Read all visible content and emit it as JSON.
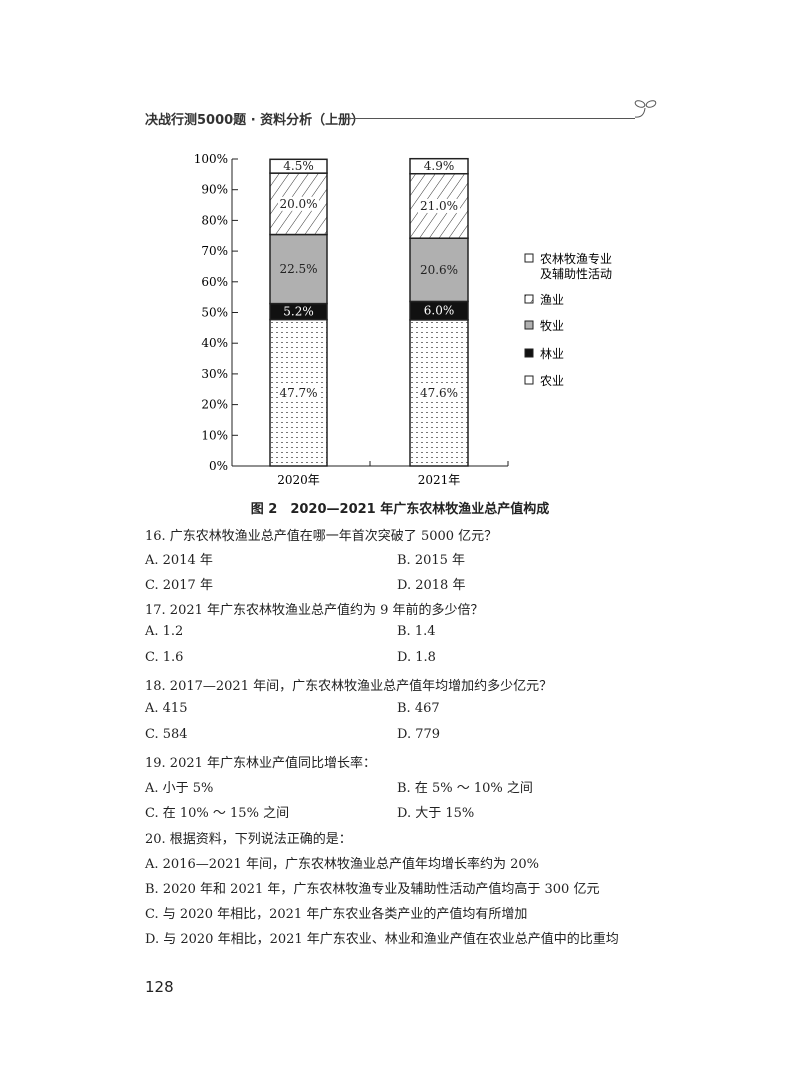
{
  "header": {
    "title": "决战行测5000题 · 资料分析（上册）"
  },
  "chart_data": {
    "type": "bar",
    "stacked": true,
    "title": "图 2　2020—2021 年广东农林牧渔业总产值构成",
    "categories": [
      "2020年",
      "2021年"
    ],
    "yticks": [
      "0%",
      "10%",
      "20%",
      "30%",
      "40%",
      "50%",
      "60%",
      "70%",
      "80%",
      "90%",
      "100%"
    ],
    "ylim": [
      0,
      100
    ],
    "series": [
      {
        "name": "农业",
        "values": [
          47.7,
          47.6
        ],
        "labels": [
          "47.7%",
          "47.6%"
        ],
        "pattern": "dots"
      },
      {
        "name": "林业",
        "values": [
          5.2,
          6.0
        ],
        "labels": [
          "5.2%",
          "6.0%"
        ],
        "color": "#111111"
      },
      {
        "name": "牧业",
        "values": [
          22.5,
          20.6
        ],
        "labels": [
          "22.5%",
          "20.6%"
        ],
        "color": "#b0b0b0"
      },
      {
        "name": "渔业",
        "values": [
          20.0,
          21.0
        ],
        "labels": [
          "20.0%",
          "21.0%"
        ],
        "pattern": "hatch"
      },
      {
        "name": "农林牧渔专业及辅助性活动",
        "values": [
          4.5,
          4.9
        ],
        "labels": [
          "4.5%",
          "4.9%"
        ],
        "color": "#ffffff"
      }
    ],
    "legend": [
      "农林牧渔专业",
      "及辅助性活动",
      "渔业",
      "牧业",
      "林业",
      "农业"
    ],
    "legend_position": "right"
  },
  "questions": [
    {
      "q": "16. 广东农林牧渔业总产值在哪一年首次突破了 5000 亿元？",
      "opts": [
        "A. 2014 年",
        "B. 2015 年",
        "C. 2017 年",
        "D. 2018 年"
      ]
    },
    {
      "q": "17. 2021 年广东农林牧渔业总产值约为 9 年前的多少倍？",
      "opts": [
        "A. 1.2",
        "B. 1.4",
        "C. 1.6",
        "D. 1.8"
      ]
    },
    {
      "q": "18. 2017—2021 年间，广东农林牧渔业总产值年均增加约多少亿元？",
      "opts": [
        "A. 415",
        "B. 467",
        "C. 584",
        "D. 779"
      ]
    },
    {
      "q": "19. 2021 年广东林业产值同比增长率：",
      "opts": [
        "A. 小于 5%",
        "B. 在 5% ～ 10% 之间",
        "C. 在 10% ～ 15% 之间",
        "D. 大于 15%"
      ]
    },
    {
      "q": "20. 根据资料，下列说法正确的是：",
      "opts": [
        "A. 2016—2021 年间，广东农林牧渔业总产值年均增长率约为 20%",
        "B. 2020 年和 2021 年，广东农林牧渔专业及辅助性活动产值均高于 300 亿元",
        "C. 与 2020 年相比，2021 年广东农业各类产业的产值均有所增加",
        "D. 与 2020 年相比，2021 年广东农业、林业和渔业产值在农业总产值中的比重均"
      ]
    }
  ],
  "page_number": "128"
}
